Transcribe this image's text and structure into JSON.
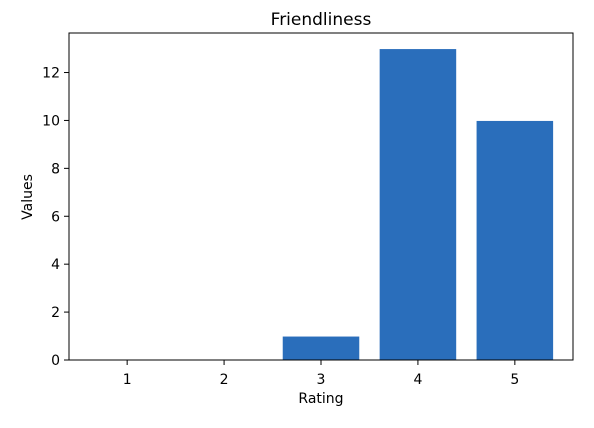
{
  "chart_data": {
    "type": "bar",
    "title": "Friendliness",
    "xlabel": "Rating",
    "ylabel": "Values",
    "categories": [
      "1",
      "2",
      "3",
      "4",
      "5"
    ],
    "values": [
      0,
      0,
      1,
      13,
      10
    ],
    "ylim": [
      0,
      13.65
    ],
    "yticks": [
      0,
      2,
      4,
      6,
      8,
      10,
      12
    ],
    "grid": false,
    "legend": "none",
    "bar_color": "#2a6ebb",
    "bar_edge_color": "#ffffff"
  }
}
